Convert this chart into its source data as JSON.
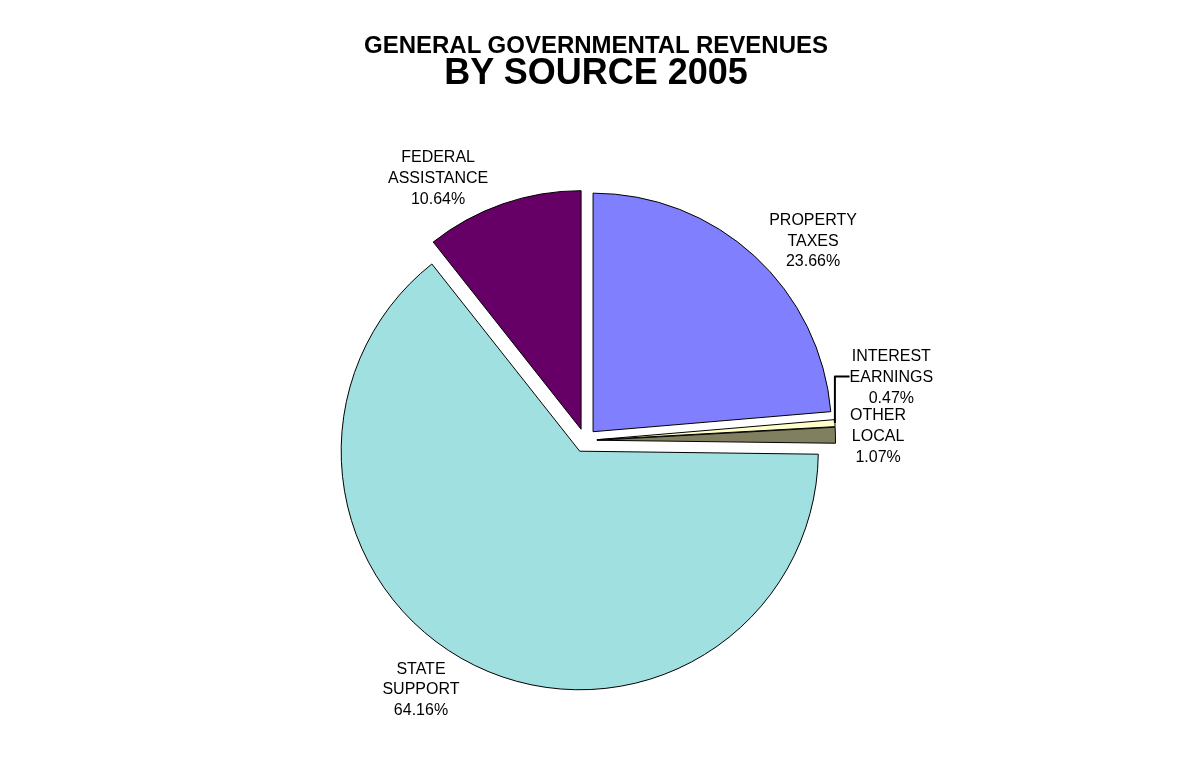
{
  "chart_data": {
    "type": "pie",
    "title": "GENERAL GOVERNMENTAL REVENUES",
    "subtitle": "BY SOURCE 2005",
    "categories": [
      "PROPERTY TAXES",
      "INTEREST EARNINGS",
      "OTHER LOCAL",
      "STATE SUPPORT",
      "FEDERAL ASSISTANCE"
    ],
    "values": [
      23.66,
      0.47,
      1.07,
      64.16,
      10.64
    ],
    "colors": [
      "#8080ff",
      "#ffffcc",
      "#808060",
      "#a0e0e0",
      "#660066"
    ],
    "value_labels": [
      "23.66%",
      "0.47%",
      "1.07%",
      "64.16%",
      "10.64%"
    ],
    "legend": false
  }
}
